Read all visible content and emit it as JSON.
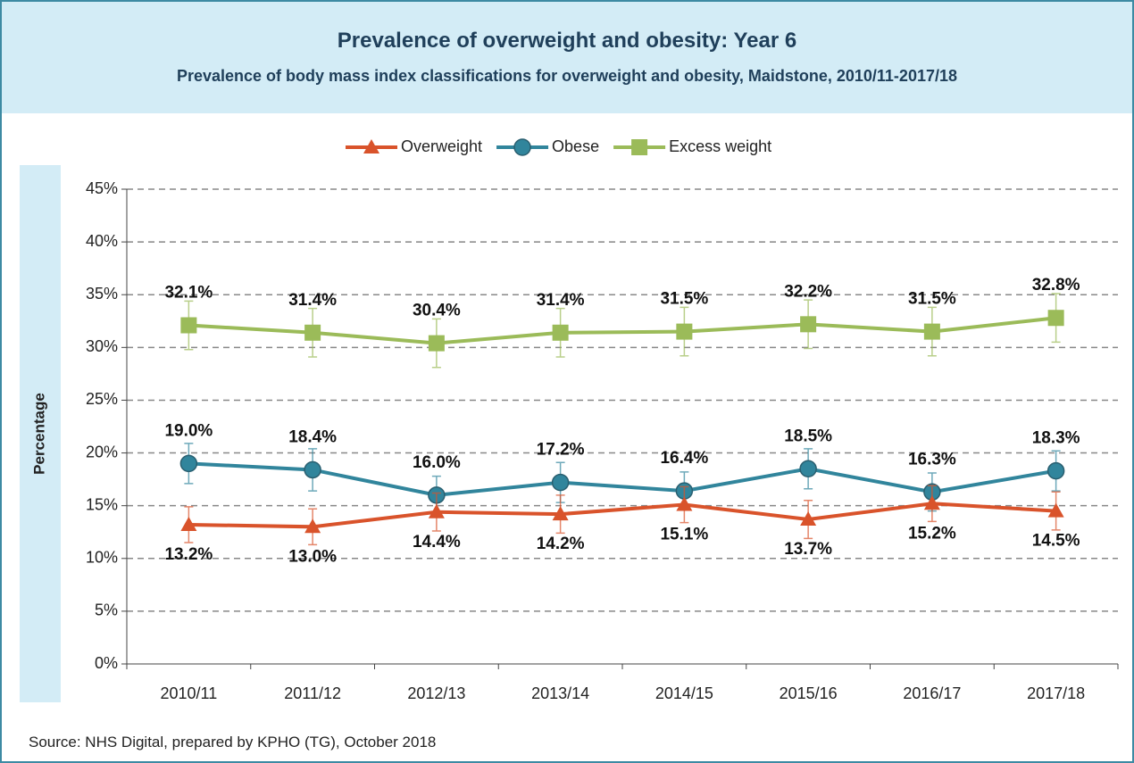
{
  "chart_data": {
    "type": "line",
    "title": "Prevalence of overweight and obesity: Year 6",
    "subtitle": "Prevalence of body mass index classifications for overweight and obesity, Maidstone, 2010/11-2017/18",
    "y_label": "Percentage",
    "source": "Source: NHS Digital, prepared by KPHO (TG), October 2018",
    "categories": [
      "2010/11",
      "2011/12",
      "2012/13",
      "2013/14",
      "2014/15",
      "2015/16",
      "2016/17",
      "2017/18"
    ],
    "series": [
      {
        "name": "Overweight",
        "color": "#d9532b",
        "marker": "triangle",
        "label_position": "below",
        "values": [
          13.2,
          13.0,
          14.4,
          14.2,
          15.1,
          13.7,
          15.2,
          14.5
        ],
        "value_labels": [
          "13.2%",
          "13.0%",
          "14.4%",
          "14.2%",
          "15.1%",
          "13.7%",
          "15.2%",
          "14.5%"
        ],
        "errors": [
          1.7,
          1.7,
          1.8,
          1.8,
          1.7,
          1.8,
          1.7,
          1.8
        ]
      },
      {
        "name": "Obese",
        "color": "#31859c",
        "marker": "circle",
        "label_position": "above",
        "values": [
          19.0,
          18.4,
          16.0,
          17.2,
          16.4,
          18.5,
          16.3,
          18.3
        ],
        "value_labels": [
          "19.0%",
          "18.4%",
          "16.0%",
          "17.2%",
          "16.4%",
          "18.5%",
          "16.3%",
          "18.3%"
        ],
        "errors": [
          1.9,
          2.0,
          1.8,
          1.9,
          1.8,
          1.9,
          1.8,
          1.9
        ]
      },
      {
        "name": "Excess weight",
        "color": "#9bbb59",
        "marker": "square",
        "label_position": "above",
        "values": [
          32.1,
          31.4,
          30.4,
          31.4,
          31.5,
          32.2,
          31.5,
          32.8
        ],
        "value_labels": [
          "32.1%",
          "31.4%",
          "30.4%",
          "31.4%",
          "31.5%",
          "32.2%",
          "31.5%",
          "32.8%"
        ],
        "errors": [
          2.3,
          2.3,
          2.3,
          2.3,
          2.3,
          2.3,
          2.3,
          2.3
        ]
      }
    ],
    "ylim": [
      0,
      45
    ],
    "yticks": [
      {
        "value": 0,
        "label": "0%"
      },
      {
        "value": 5,
        "label": "5%"
      },
      {
        "value": 10,
        "label": "10%"
      },
      {
        "value": 15,
        "label": "15%"
      },
      {
        "value": 20,
        "label": "20%"
      },
      {
        "value": 25,
        "label": "25%"
      },
      {
        "value": 30,
        "label": "30%"
      },
      {
        "value": 35,
        "label": "35%"
      },
      {
        "value": 40,
        "label": "40%"
      },
      {
        "value": 45,
        "label": "45%"
      }
    ],
    "grid": true,
    "legend": "top"
  }
}
